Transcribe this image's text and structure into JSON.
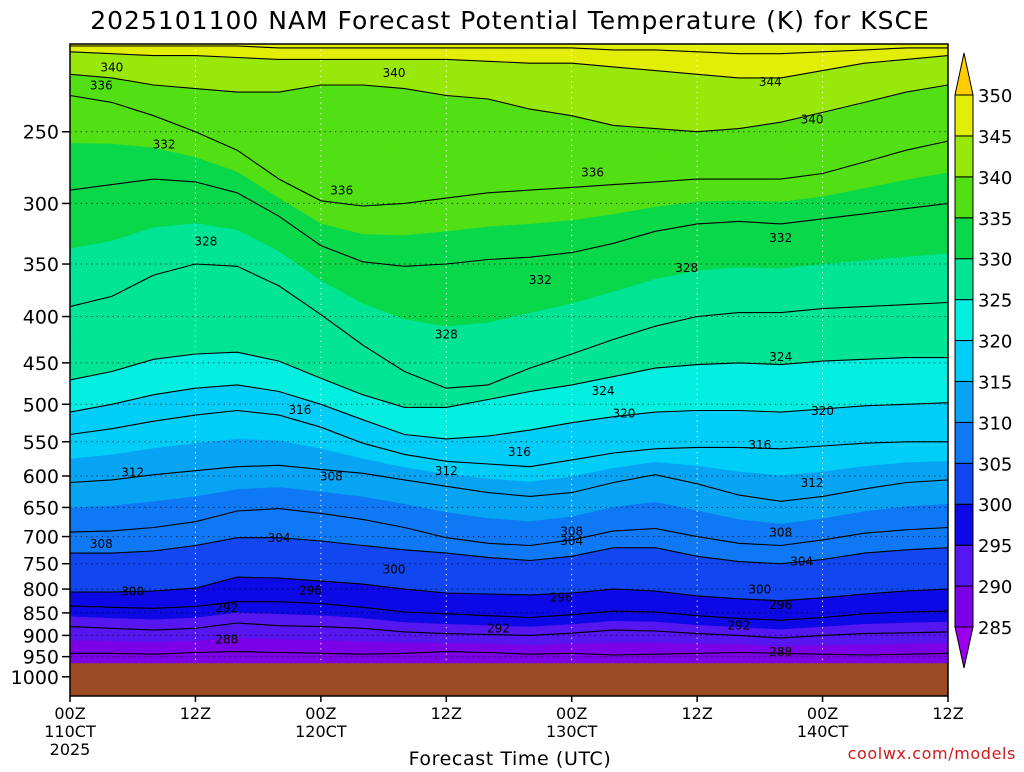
{
  "title": "2025101100 NAM Forecast Potential Temperature (K) for KSCE",
  "credit": "coolwx.com/models",
  "colors": {
    "terrain": "#9c4a24",
    "contour_line": "#000000",
    "credit": "#d21a1a"
  },
  "chart_data": {
    "type": "heatmap",
    "title": "2025101100 NAM Forecast Potential Temperature (K) for KSCE",
    "xlabel": "Forecast Time (UTC)",
    "ylabel": "",
    "x_range_hours": [
      0,
      84
    ],
    "x_ticks": [
      {
        "hour": 0,
        "line1": "00Z",
        "line2": "110CT",
        "line3": "2025"
      },
      {
        "hour": 12,
        "line1": "12Z",
        "line2": "",
        "line3": ""
      },
      {
        "hour": 24,
        "line1": "00Z",
        "line2": "120CT",
        "line3": ""
      },
      {
        "hour": 36,
        "line1": "12Z",
        "line2": "",
        "line3": ""
      },
      {
        "hour": 48,
        "line1": "00Z",
        "line2": "130CT",
        "line3": ""
      },
      {
        "hour": 60,
        "line1": "12Z",
        "line2": "",
        "line3": ""
      },
      {
        "hour": 72,
        "line1": "00Z",
        "line2": "140CT",
        "line3": ""
      },
      {
        "hour": 84,
        "line1": "12Z",
        "line2": "",
        "line3": ""
      }
    ],
    "y_scale": "log-pressure",
    "y_range_hpa": [
      1050,
      200
    ],
    "y_ticks": [
      250,
      300,
      350,
      400,
      450,
      500,
      550,
      600,
      650,
      700,
      750,
      800,
      850,
      900,
      950,
      1000
    ],
    "surface_pressure_hpa": 966,
    "grid": true,
    "colorbar": {
      "ticks": [
        285,
        290,
        295,
        300,
        305,
        310,
        315,
        320,
        325,
        330,
        335,
        340,
        345,
        350
      ],
      "bands": [
        {
          "lo": 280,
          "hi": 285,
          "color": "#9a00ee"
        },
        {
          "lo": 285,
          "hi": 290,
          "color": "#7b00e8"
        },
        {
          "lo": 290,
          "hi": 295,
          "color": "#5516f0"
        },
        {
          "lo": 295,
          "hi": 300,
          "color": "#0d08e6"
        },
        {
          "lo": 300,
          "hi": 305,
          "color": "#1246f0"
        },
        {
          "lo": 305,
          "hi": 310,
          "color": "#0f78f5"
        },
        {
          "lo": 310,
          "hi": 315,
          "color": "#08a4f4"
        },
        {
          "lo": 315,
          "hi": 320,
          "color": "#00cdf8"
        },
        {
          "lo": 320,
          "hi": 325,
          "color": "#00efe0"
        },
        {
          "lo": 325,
          "hi": 330,
          "color": "#00e496"
        },
        {
          "lo": 330,
          "hi": 335,
          "color": "#08d84a"
        },
        {
          "lo": 335,
          "hi": 340,
          "color": "#52e014"
        },
        {
          "lo": 340,
          "hi": 345,
          "color": "#9ae70a"
        },
        {
          "lo": 345,
          "hi": 350,
          "color": "#e3ee06"
        },
        {
          "lo": 350,
          "hi": 355,
          "color": "#ffcc00"
        }
      ]
    },
    "isentropes": [
      {
        "theta": 288,
        "pressure_hpa": [
          942,
          942,
          944,
          940,
          938,
          940,
          942,
          944,
          942,
          938,
          940,
          944,
          942,
          946,
          944,
          942,
          940,
          942,
          944,
          946,
          944,
          942
        ]
      },
      {
        "theta": 292,
        "pressure_hpa": [
          880,
          884,
          888,
          884,
          872,
          878,
          880,
          884,
          892,
          896,
          898,
          900,
          895,
          888,
          890,
          896,
          900,
          906,
          900,
          896,
          894,
          892
        ]
      },
      {
        "theta": 296,
        "pressure_hpa": [
          835,
          838,
          840,
          836,
          826,
          826,
          830,
          838,
          848,
          852,
          856,
          860,
          854,
          846,
          848,
          856,
          862,
          866,
          860,
          852,
          848,
          846
        ]
      },
      {
        "theta": 300,
        "pressure_hpa": [
          806,
          806,
          804,
          798,
          776,
          778,
          784,
          790,
          800,
          808,
          810,
          812,
          808,
          800,
          804,
          814,
          820,
          824,
          818,
          810,
          804,
          800
        ]
      },
      {
        "theta": 304,
        "pressure_hpa": [
          730,
          730,
          726,
          716,
          702,
          702,
          708,
          716,
          724,
          730,
          738,
          744,
          736,
          720,
          720,
          736,
          746,
          750,
          742,
          730,
          724,
          720
        ]
      },
      {
        "theta": 308,
        "pressure_hpa": [
          692,
          690,
          684,
          674,
          656,
          652,
          660,
          670,
          684,
          702,
          712,
          716,
          706,
          690,
          686,
          700,
          712,
          716,
          706,
          694,
          688,
          684
        ]
      },
      {
        "theta": 312,
        "pressure_hpa": [
          610,
          606,
          598,
          592,
          586,
          584,
          590,
          596,
          606,
          616,
          626,
          632,
          626,
          610,
          598,
          612,
          630,
          640,
          632,
          620,
          610,
          606
        ]
      },
      {
        "theta": 316,
        "pressure_hpa": [
          540,
          532,
          522,
          514,
          508,
          514,
          530,
          552,
          568,
          578,
          582,
          586,
          576,
          566,
          560,
          558,
          558,
          560,
          556,
          552,
          550,
          550
        ]
      },
      {
        "theta": 320,
        "pressure_hpa": [
          510,
          500,
          488,
          480,
          476,
          484,
          500,
          520,
          540,
          546,
          542,
          534,
          524,
          516,
          510,
          508,
          508,
          510,
          506,
          502,
          500,
          498
        ]
      },
      {
        "theta": 324,
        "pressure_hpa": [
          470,
          460,
          446,
          440,
          438,
          448,
          468,
          488,
          504,
          504,
          494,
          484,
          476,
          466,
          456,
          452,
          450,
          452,
          448,
          446,
          444,
          444
        ]
      },
      {
        "theta": 328,
        "pressure_hpa": [
          390,
          380,
          360,
          350,
          352,
          370,
          398,
          430,
          460,
          480,
          476,
          456,
          440,
          424,
          410,
          400,
          396,
          396,
          392,
          390,
          388,
          386
        ]
      },
      {
        "theta": 332,
        "pressure_hpa": [
          290,
          286,
          282,
          284,
          292,
          310,
          334,
          348,
          352,
          350,
          346,
          344,
          340,
          332,
          322,
          316,
          314,
          316,
          312,
          308,
          304,
          300
        ]
      },
      {
        "theta": 336,
        "pressure_hpa": [
          228,
          232,
          240,
          250,
          262,
          282,
          298,
          302,
          300,
          296,
          292,
          290,
          288,
          286,
          284,
          282,
          282,
          282,
          278,
          270,
          262,
          256
        ]
      },
      {
        "theta": 340,
        "pressure_hpa": [
          216,
          218,
          222,
          224,
          226,
          226,
          222,
          222,
          224,
          228,
          230,
          236,
          240,
          246,
          248,
          250,
          248,
          244,
          238,
          232,
          226,
          222
        ]
      },
      {
        "theta": 344,
        "pressure_hpa": [
          204,
          205,
          206,
          206,
          207,
          208,
          208,
          208,
          208,
          208,
          209,
          210,
          210,
          212,
          214,
          216,
          218,
          218,
          214,
          210,
          208,
          206
        ]
      },
      {
        "theta": 348,
        "pressure_hpa": [
          201,
          201,
          201,
          201,
          201,
          202,
          202,
          202,
          202,
          202,
          202,
          202,
          202,
          203,
          203,
          204,
          205,
          205,
          204,
          203,
          202,
          202
        ]
      }
    ],
    "isentrope_hours": [
      0,
      4,
      8,
      12,
      16,
      20,
      24,
      28,
      32,
      36,
      40,
      44,
      48,
      52,
      56,
      60,
      64,
      68,
      72,
      76,
      80,
      84
    ],
    "contour_labels": [
      {
        "text": "340",
        "hour": 4,
        "p": 212
      },
      {
        "text": "336",
        "hour": 3,
        "p": 222
      },
      {
        "text": "332",
        "hour": 9,
        "p": 258
      },
      {
        "text": "340",
        "hour": 31,
        "p": 215
      },
      {
        "text": "344",
        "hour": 67,
        "p": 220
      },
      {
        "text": "340",
        "hour": 71,
        "p": 242
      },
      {
        "text": "336",
        "hour": 26,
        "p": 290
      },
      {
        "text": "336",
        "hour": 50,
        "p": 277
      },
      {
        "text": "332",
        "hour": 68,
        "p": 327
      },
      {
        "text": "328",
        "hour": 13,
        "p": 330
      },
      {
        "text": "332",
        "hour": 45,
        "p": 364
      },
      {
        "text": "328",
        "hour": 59,
        "p": 353
      },
      {
        "text": "328",
        "hour": 36,
        "p": 418
      },
      {
        "text": "324",
        "hour": 68,
        "p": 443
      },
      {
        "text": "324",
        "hour": 51,
        "p": 483
      },
      {
        "text": "316",
        "hour": 22,
        "p": 507
      },
      {
        "text": "320",
        "hour": 53,
        "p": 511
      },
      {
        "text": "320",
        "hour": 72,
        "p": 508
      },
      {
        "text": "316",
        "hour": 43,
        "p": 564
      },
      {
        "text": "316",
        "hour": 66,
        "p": 554
      },
      {
        "text": "312",
        "hour": 6,
        "p": 594
      },
      {
        "text": "308",
        "hour": 25,
        "p": 600
      },
      {
        "text": "312",
        "hour": 36,
        "p": 592
      },
      {
        "text": "312",
        "hour": 71,
        "p": 610
      },
      {
        "text": "308",
        "hour": 48,
        "p": 690
      },
      {
        "text": "304",
        "hour": 48,
        "p": 707
      },
      {
        "text": "308",
        "hour": 68,
        "p": 692
      },
      {
        "text": "308",
        "hour": 3,
        "p": 712
      },
      {
        "text": "304",
        "hour": 20,
        "p": 702
      },
      {
        "text": "304",
        "hour": 70,
        "p": 745
      },
      {
        "text": "300",
        "hour": 31,
        "p": 760
      },
      {
        "text": "300",
        "hour": 6,
        "p": 804
      },
      {
        "text": "296",
        "hour": 23,
        "p": 802
      },
      {
        "text": "296",
        "hour": 47,
        "p": 816
      },
      {
        "text": "300",
        "hour": 66,
        "p": 800
      },
      {
        "text": "296",
        "hour": 68,
        "p": 832
      },
      {
        "text": "292",
        "hour": 15,
        "p": 838
      },
      {
        "text": "292",
        "hour": 41,
        "p": 883
      },
      {
        "text": "292",
        "hour": 64,
        "p": 877
      },
      {
        "text": "288",
        "hour": 15,
        "p": 908
      },
      {
        "text": "288",
        "hour": 68,
        "p": 938
      }
    ]
  }
}
